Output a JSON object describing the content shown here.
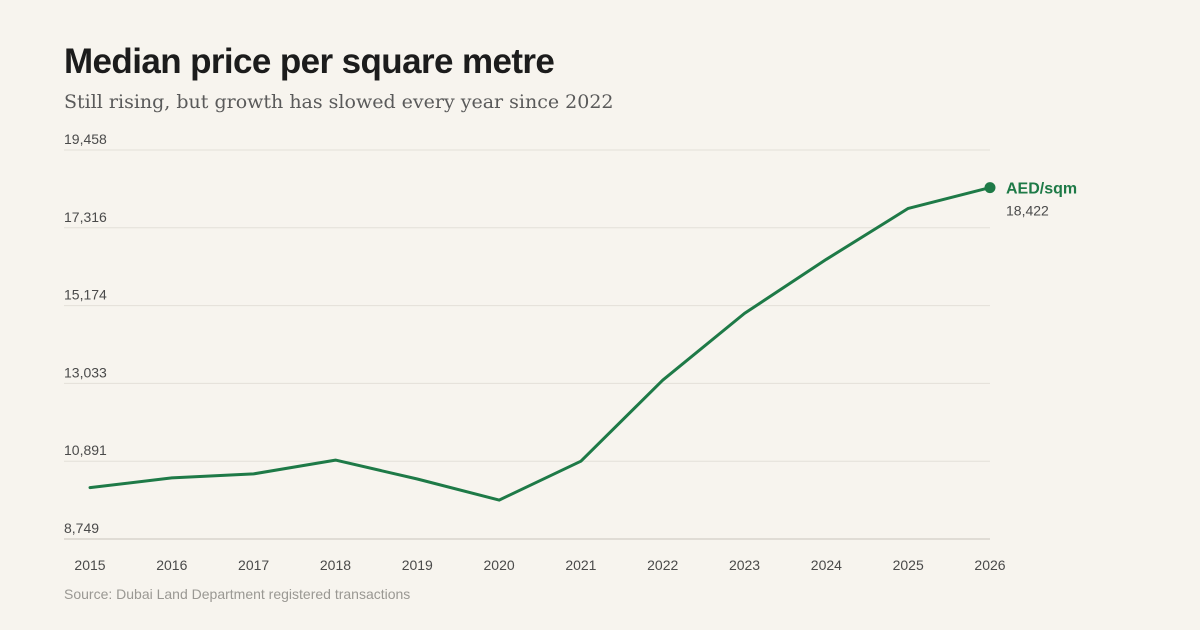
{
  "header": {
    "title": "Median price per square metre",
    "subtitle": "Still rising, but growth has slowed every year since 2022"
  },
  "footer": {
    "source": "Source: Dubai Land Department registered transactions"
  },
  "colors": {
    "series": "#1e7a47"
  },
  "chart_data": {
    "type": "line",
    "title": "Median price per square metre",
    "subtitle": "Still rising, but growth has slowed every year since 2022",
    "xlabel": "",
    "ylabel": "",
    "x": [
      "2015",
      "2016",
      "2017",
      "2018",
      "2019",
      "2020",
      "2021",
      "2022",
      "2023",
      "2024",
      "2025",
      "2026"
    ],
    "y_ticks": [
      "8,749",
      "10,891",
      "13,033",
      "15,174",
      "17,316",
      "19,458"
    ],
    "ylim": [
      8749,
      19458
    ],
    "grid": true,
    "series": [
      {
        "name": "AED/sqm",
        "values": [
          10165,
          10430,
          10540,
          10920,
          10400,
          9820,
          10890,
          13120,
          14960,
          16450,
          17850,
          18422
        ],
        "end_label": "18,422"
      }
    ]
  }
}
